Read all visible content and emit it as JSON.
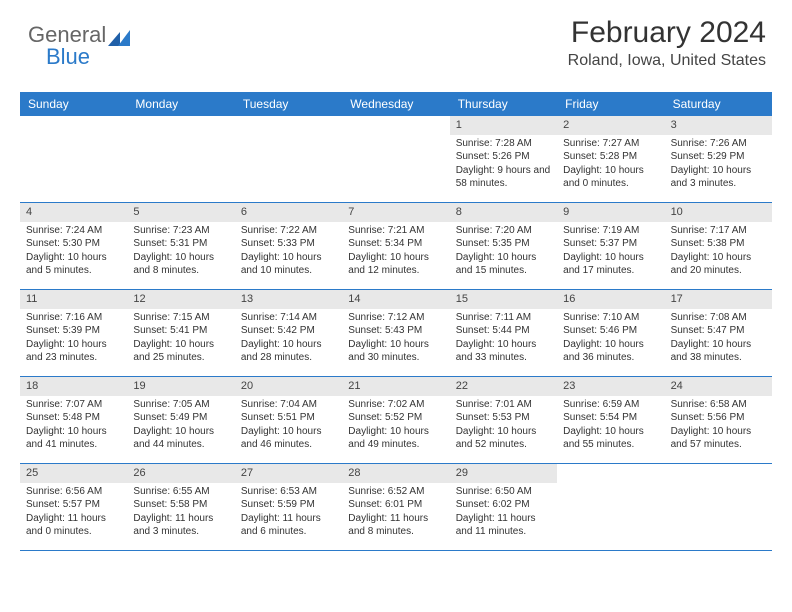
{
  "logo": {
    "general": "General",
    "blue": "Blue"
  },
  "header": {
    "month_title": "February 2024",
    "location": "Roland, Iowa, United States"
  },
  "weekdays": [
    "Sunday",
    "Monday",
    "Tuesday",
    "Wednesday",
    "Thursday",
    "Friday",
    "Saturday"
  ],
  "colors": {
    "header_bar": "#2b7ac9",
    "header_text": "#ffffff",
    "daynum_bg": "#e8e8e8",
    "week_divider": "#2b7ac9",
    "logo_blue": "#2b7ac9",
    "body_text": "#333333",
    "background": "#ffffff"
  },
  "fonts": {
    "body_size_pt": 10,
    "weekday_size_pt": 12,
    "title_size_pt": 30,
    "location_size_pt": 16
  },
  "weeks": [
    [
      {
        "empty": true
      },
      {
        "empty": true
      },
      {
        "empty": true
      },
      {
        "empty": true
      },
      {
        "num": "1",
        "sunrise": "Sunrise: 7:28 AM",
        "sunset": "Sunset: 5:26 PM",
        "daylight": "Daylight: 9 hours and 58 minutes."
      },
      {
        "num": "2",
        "sunrise": "Sunrise: 7:27 AM",
        "sunset": "Sunset: 5:28 PM",
        "daylight": "Daylight: 10 hours and 0 minutes."
      },
      {
        "num": "3",
        "sunrise": "Sunrise: 7:26 AM",
        "sunset": "Sunset: 5:29 PM",
        "daylight": "Daylight: 10 hours and 3 minutes."
      }
    ],
    [
      {
        "num": "4",
        "sunrise": "Sunrise: 7:24 AM",
        "sunset": "Sunset: 5:30 PM",
        "daylight": "Daylight: 10 hours and 5 minutes."
      },
      {
        "num": "5",
        "sunrise": "Sunrise: 7:23 AM",
        "sunset": "Sunset: 5:31 PM",
        "daylight": "Daylight: 10 hours and 8 minutes."
      },
      {
        "num": "6",
        "sunrise": "Sunrise: 7:22 AM",
        "sunset": "Sunset: 5:33 PM",
        "daylight": "Daylight: 10 hours and 10 minutes."
      },
      {
        "num": "7",
        "sunrise": "Sunrise: 7:21 AM",
        "sunset": "Sunset: 5:34 PM",
        "daylight": "Daylight: 10 hours and 12 minutes."
      },
      {
        "num": "8",
        "sunrise": "Sunrise: 7:20 AM",
        "sunset": "Sunset: 5:35 PM",
        "daylight": "Daylight: 10 hours and 15 minutes."
      },
      {
        "num": "9",
        "sunrise": "Sunrise: 7:19 AM",
        "sunset": "Sunset: 5:37 PM",
        "daylight": "Daylight: 10 hours and 17 minutes."
      },
      {
        "num": "10",
        "sunrise": "Sunrise: 7:17 AM",
        "sunset": "Sunset: 5:38 PM",
        "daylight": "Daylight: 10 hours and 20 minutes."
      }
    ],
    [
      {
        "num": "11",
        "sunrise": "Sunrise: 7:16 AM",
        "sunset": "Sunset: 5:39 PM",
        "daylight": "Daylight: 10 hours and 23 minutes."
      },
      {
        "num": "12",
        "sunrise": "Sunrise: 7:15 AM",
        "sunset": "Sunset: 5:41 PM",
        "daylight": "Daylight: 10 hours and 25 minutes."
      },
      {
        "num": "13",
        "sunrise": "Sunrise: 7:14 AM",
        "sunset": "Sunset: 5:42 PM",
        "daylight": "Daylight: 10 hours and 28 minutes."
      },
      {
        "num": "14",
        "sunrise": "Sunrise: 7:12 AM",
        "sunset": "Sunset: 5:43 PM",
        "daylight": "Daylight: 10 hours and 30 minutes."
      },
      {
        "num": "15",
        "sunrise": "Sunrise: 7:11 AM",
        "sunset": "Sunset: 5:44 PM",
        "daylight": "Daylight: 10 hours and 33 minutes."
      },
      {
        "num": "16",
        "sunrise": "Sunrise: 7:10 AM",
        "sunset": "Sunset: 5:46 PM",
        "daylight": "Daylight: 10 hours and 36 minutes."
      },
      {
        "num": "17",
        "sunrise": "Sunrise: 7:08 AM",
        "sunset": "Sunset: 5:47 PM",
        "daylight": "Daylight: 10 hours and 38 minutes."
      }
    ],
    [
      {
        "num": "18",
        "sunrise": "Sunrise: 7:07 AM",
        "sunset": "Sunset: 5:48 PM",
        "daylight": "Daylight: 10 hours and 41 minutes."
      },
      {
        "num": "19",
        "sunrise": "Sunrise: 7:05 AM",
        "sunset": "Sunset: 5:49 PM",
        "daylight": "Daylight: 10 hours and 44 minutes."
      },
      {
        "num": "20",
        "sunrise": "Sunrise: 7:04 AM",
        "sunset": "Sunset: 5:51 PM",
        "daylight": "Daylight: 10 hours and 46 minutes."
      },
      {
        "num": "21",
        "sunrise": "Sunrise: 7:02 AM",
        "sunset": "Sunset: 5:52 PM",
        "daylight": "Daylight: 10 hours and 49 minutes."
      },
      {
        "num": "22",
        "sunrise": "Sunrise: 7:01 AM",
        "sunset": "Sunset: 5:53 PM",
        "daylight": "Daylight: 10 hours and 52 minutes."
      },
      {
        "num": "23",
        "sunrise": "Sunrise: 6:59 AM",
        "sunset": "Sunset: 5:54 PM",
        "daylight": "Daylight: 10 hours and 55 minutes."
      },
      {
        "num": "24",
        "sunrise": "Sunrise: 6:58 AM",
        "sunset": "Sunset: 5:56 PM",
        "daylight": "Daylight: 10 hours and 57 minutes."
      }
    ],
    [
      {
        "num": "25",
        "sunrise": "Sunrise: 6:56 AM",
        "sunset": "Sunset: 5:57 PM",
        "daylight": "Daylight: 11 hours and 0 minutes."
      },
      {
        "num": "26",
        "sunrise": "Sunrise: 6:55 AM",
        "sunset": "Sunset: 5:58 PM",
        "daylight": "Daylight: 11 hours and 3 minutes."
      },
      {
        "num": "27",
        "sunrise": "Sunrise: 6:53 AM",
        "sunset": "Sunset: 5:59 PM",
        "daylight": "Daylight: 11 hours and 6 minutes."
      },
      {
        "num": "28",
        "sunrise": "Sunrise: 6:52 AM",
        "sunset": "Sunset: 6:01 PM",
        "daylight": "Daylight: 11 hours and 8 minutes."
      },
      {
        "num": "29",
        "sunrise": "Sunrise: 6:50 AM",
        "sunset": "Sunset: 6:02 PM",
        "daylight": "Daylight: 11 hours and 11 minutes."
      },
      {
        "empty": true
      },
      {
        "empty": true
      }
    ]
  ]
}
